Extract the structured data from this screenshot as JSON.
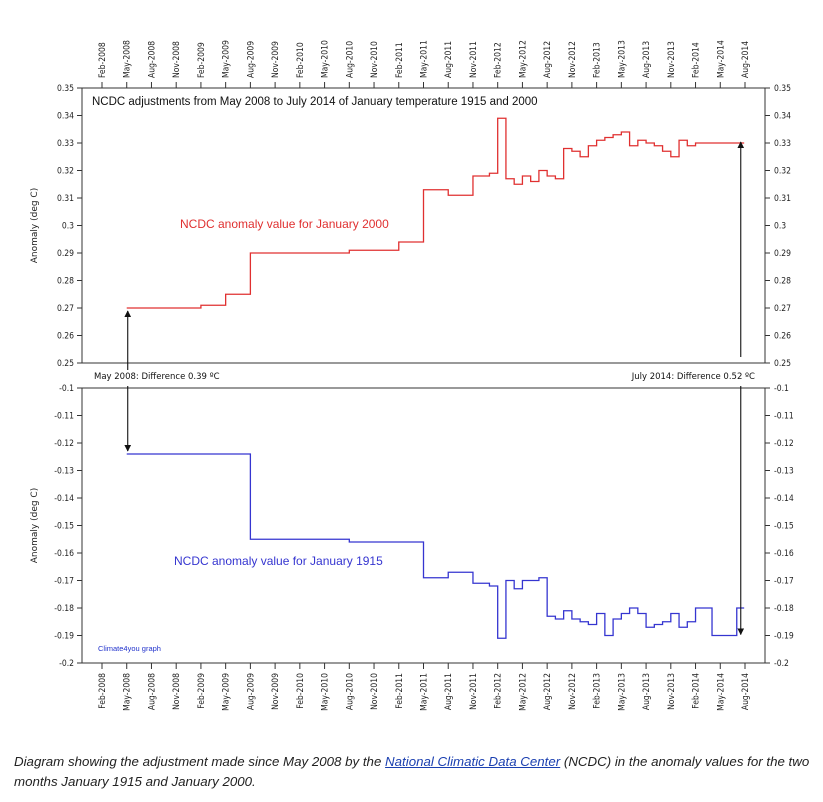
{
  "chart_data": {
    "type": "line",
    "title": "NCDC adjustments from May 2008 to July 2014 of January temperature 1915 and 2000",
    "x_tick_labels": [
      "Feb-2008",
      "May-2008",
      "Aug-2008",
      "Nov-2008",
      "Feb-2009",
      "May-2009",
      "Aug-2009",
      "Nov-2009",
      "Feb-2010",
      "May-2010",
      "Aug-2010",
      "Nov-2010",
      "Feb-2011",
      "May-2011",
      "Aug-2011",
      "Nov-2011",
      "Feb-2012",
      "May-2012",
      "Aug-2012",
      "Nov-2012",
      "Feb-2013",
      "May-2013",
      "Aug-2013",
      "Nov-2013",
      "Feb-2014",
      "May-2014",
      "Aug-2014"
    ],
    "panels": [
      {
        "ylabel": "Anomaly (deg C)",
        "ylim": [
          0.25,
          0.35
        ],
        "y_ticks": [
          "0.25",
          "0.26",
          "0.27",
          "0.28",
          "0.29",
          "0.3",
          "0.31",
          "0.32",
          "0.33",
          "0.34",
          "0.35"
        ],
        "series": [
          {
            "name": "NCDC anomaly value for January 2000",
            "color": "#e03030",
            "x": [
              "2008-05",
              "2008-08",
              "2008-11",
              "2009-02",
              "2009-05",
              "2009-08",
              "2010-02",
              "2010-08",
              "2011-02",
              "2011-05",
              "2011-08",
              "2011-11",
              "2012-01",
              "2012-02",
              "2012-03",
              "2012-04",
              "2012-05",
              "2012-06",
              "2012-07",
              "2012-08",
              "2012-09",
              "2012-10",
              "2012-11",
              "2012-12",
              "2013-01",
              "2013-02",
              "2013-03",
              "2013-04",
              "2013-05",
              "2013-06",
              "2013-07",
              "2013-08",
              "2013-09",
              "2013-10",
              "2013-11",
              "2013-12",
              "2014-01",
              "2014-02",
              "2014-04",
              "2014-07"
            ],
            "y": [
              0.27,
              0.27,
              0.27,
              0.271,
              0.275,
              0.29,
              0.29,
              0.291,
              0.294,
              0.313,
              0.311,
              0.318,
              0.319,
              0.339,
              0.317,
              0.315,
              0.318,
              0.316,
              0.32,
              0.318,
              0.317,
              0.328,
              0.327,
              0.325,
              0.329,
              0.331,
              0.332,
              0.333,
              0.334,
              0.329,
              0.331,
              0.33,
              0.329,
              0.327,
              0.325,
              0.331,
              0.329,
              0.33,
              0.33,
              0.33
            ]
          }
        ]
      },
      {
        "ylabel": "Anomaly (deg C)",
        "ylim": [
          -0.2,
          -0.1
        ],
        "y_ticks": [
          "-0.1",
          "-0.11",
          "-0.12",
          "-0.13",
          "-0.14",
          "-0.15",
          "-0.16",
          "-0.17",
          "-0.18",
          "-0.19",
          "-0.2"
        ],
        "series": [
          {
            "name": "NCDC anomaly value for January 1915",
            "color": "#3535d0",
            "x": [
              "2008-05",
              "2008-08",
              "2008-11",
              "2009-02",
              "2009-05",
              "2009-08",
              "2010-02",
              "2010-08",
              "2011-02",
              "2011-05",
              "2011-08",
              "2011-11",
              "2012-01",
              "2012-02",
              "2012-03",
              "2012-04",
              "2012-05",
              "2012-06",
              "2012-07",
              "2012-08",
              "2012-09",
              "2012-10",
              "2012-11",
              "2012-12",
              "2013-01",
              "2013-02",
              "2013-03",
              "2013-04",
              "2013-05",
              "2013-06",
              "2013-07",
              "2013-08",
              "2013-09",
              "2013-10",
              "2013-11",
              "2013-12",
              "2014-01",
              "2014-02",
              "2014-04",
              "2014-07"
            ],
            "y": [
              -0.124,
              -0.124,
              -0.124,
              -0.124,
              -0.124,
              -0.155,
              -0.155,
              -0.156,
              -0.156,
              -0.169,
              -0.167,
              -0.171,
              -0.172,
              -0.191,
              -0.17,
              -0.173,
              -0.17,
              -0.17,
              -0.169,
              -0.183,
              -0.184,
              -0.181,
              -0.184,
              -0.185,
              -0.186,
              -0.182,
              -0.19,
              -0.184,
              -0.182,
              -0.18,
              -0.182,
              -0.187,
              -0.186,
              -0.185,
              -0.182,
              -0.187,
              -0.185,
              -0.18,
              -0.19,
              -0.18
            ]
          }
        ]
      }
    ],
    "annotations": {
      "left_note": "May 2008: Difference 0.39 ºC",
      "right_note": "July 2014: Difference 0.52 ºC",
      "credit": "Climate4you graph"
    }
  },
  "caption": {
    "before_link": "Diagram showing the adjustment made since May 2008 by the ",
    "link_text": "National Climatic Data Center",
    "after_link": " (NCDC) in the anomaly values for the two months January 1915 and January 2000."
  }
}
